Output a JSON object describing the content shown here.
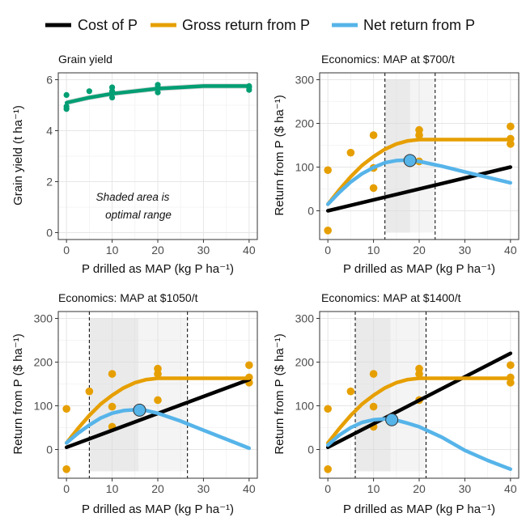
{
  "legend": {
    "items": [
      {
        "label": "Cost of P",
        "color": "#000000"
      },
      {
        "label": "Gross return from P",
        "color": "#E69F00"
      },
      {
        "label": "Net return from P",
        "color": "#56B4E9"
      }
    ]
  },
  "colors": {
    "yield": "#009E73",
    "cost": "#000000",
    "gross": "#E69F00",
    "net": "#56B4E9",
    "shade": "#D9D9D9"
  },
  "chart_data": [
    {
      "type": "scatter",
      "title": "Grain yield",
      "xlabel": "P drilled as MAP (kg P ha⁻¹)",
      "ylabel": "Grain yield (t ha⁻¹)",
      "xlim": [
        0,
        40
      ],
      "ylim": [
        0,
        6
      ],
      "xticks": [
        0,
        10,
        20,
        30,
        40
      ],
      "yticks": [
        0,
        2,
        4,
        6
      ],
      "points": {
        "x": [
          0,
          0,
          0,
          5,
          10,
          10,
          10,
          20,
          20,
          20,
          40,
          40,
          40
        ],
        "y": [
          4.85,
          4.95,
          5.4,
          5.55,
          5.3,
          5.55,
          5.7,
          5.5,
          5.7,
          5.8,
          5.7,
          5.75,
          5.6
        ]
      },
      "fit": {
        "x": [
          0,
          5,
          10,
          15,
          20,
          25,
          30,
          35,
          40
        ],
        "y": [
          5.1,
          5.3,
          5.45,
          5.55,
          5.65,
          5.7,
          5.75,
          5.75,
          5.75
        ]
      },
      "annotation": [
        "Shaded area is",
        "optimal range"
      ]
    },
    {
      "type": "line",
      "title": "Economics: MAP at $700/t",
      "xlabel": "P drilled as MAP (kg P ha⁻¹)",
      "ylabel": "Return from P ($ ha⁻¹)",
      "xlim": [
        0,
        40
      ],
      "ylim": [
        -50,
        300
      ],
      "xticks": [
        0,
        10,
        20,
        30,
        40
      ],
      "yticks": [
        0,
        100,
        200,
        300
      ],
      "optimal_range": [
        12.5,
        23.5
      ],
      "optimum": {
        "x": 18,
        "y": 115
      },
      "points": {
        "x": [
          0,
          0,
          5,
          10,
          10,
          10,
          20,
          20,
          20,
          40,
          40,
          40
        ],
        "y": [
          -45,
          93,
          133,
          173,
          98,
          52,
          185,
          173,
          113,
          193,
          165,
          153
        ]
      },
      "series": [
        {
          "name": "Cost of P",
          "x": [
            0,
            40
          ],
          "y": [
            0,
            100
          ]
        },
        {
          "name": "Gross return from P",
          "x": [
            0,
            2.5,
            5,
            7.5,
            10,
            12.5,
            15,
            17.5,
            20,
            22.5,
            30,
            40
          ],
          "y": [
            15,
            48,
            78,
            104,
            124,
            141,
            153,
            160,
            163,
            163,
            163,
            163
          ]
        },
        {
          "name": "Net return from P",
          "x": [
            0,
            2.5,
            5,
            7.5,
            10,
            12.5,
            15,
            17.5,
            20,
            25,
            30,
            40
          ],
          "y": [
            15,
            42,
            66,
            85,
            99,
            110,
            115,
            116,
            113,
            102,
            89,
            64
          ]
        }
      ]
    },
    {
      "type": "line",
      "title": "Economics: MAP at $1050/t",
      "xlabel": "P drilled as MAP (kg P ha⁻¹)",
      "ylabel": "Return from P ($ ha⁻¹)",
      "xlim": [
        0,
        40
      ],
      "ylim": [
        -50,
        300
      ],
      "xticks": [
        0,
        10,
        20,
        30,
        40
      ],
      "yticks": [
        0,
        100,
        200,
        300
      ],
      "optimal_range": [
        5,
        26.5
      ],
      "optimum": {
        "x": 16,
        "y": 90
      },
      "points": {
        "x": [
          0,
          0,
          5,
          10,
          10,
          10,
          20,
          20,
          20,
          40,
          40,
          40
        ],
        "y": [
          -45,
          93,
          133,
          173,
          98,
          52,
          185,
          173,
          113,
          193,
          165,
          153
        ]
      },
      "series": [
        {
          "name": "Cost of P",
          "x": [
            0,
            40
          ],
          "y": [
            5,
            160
          ]
        },
        {
          "name": "Gross return from P",
          "x": [
            0,
            2.5,
            5,
            7.5,
            10,
            12.5,
            15,
            17.5,
            20,
            22.5,
            30,
            40
          ],
          "y": [
            15,
            48,
            78,
            104,
            124,
            141,
            153,
            160,
            163,
            163,
            163,
            163
          ]
        },
        {
          "name": "Net return from P",
          "x": [
            0,
            2.5,
            5,
            7.5,
            10,
            12.5,
            15,
            17.5,
            20,
            25,
            30,
            40
          ],
          "y": [
            15,
            37,
            56,
            72,
            83,
            89,
            91,
            89,
            83,
            65,
            44,
            3
          ]
        }
      ]
    },
    {
      "type": "line",
      "title": "Economics: MAP at $1400/t",
      "xlabel": "P drilled as MAP (kg P ha⁻¹)",
      "ylabel": "Return from P ($ ha⁻¹)",
      "xlim": [
        0,
        40
      ],
      "ylim": [
        -50,
        300
      ],
      "xticks": [
        0,
        10,
        20,
        30,
        40
      ],
      "yticks": [
        0,
        100,
        200,
        300
      ],
      "optimal_range": [
        6,
        21.5
      ],
      "optimum": {
        "x": 14,
        "y": 68
      },
      "points": {
        "x": [
          0,
          0,
          5,
          10,
          10,
          10,
          20,
          20,
          20,
          40,
          40,
          40
        ],
        "y": [
          -45,
          93,
          133,
          173,
          98,
          52,
          185,
          173,
          113,
          193,
          165,
          153
        ]
      },
      "series": [
        {
          "name": "Cost of P",
          "x": [
            0,
            40
          ],
          "y": [
            5,
            220
          ]
        },
        {
          "name": "Gross return from P",
          "x": [
            0,
            2.5,
            5,
            7.5,
            10,
            12.5,
            15,
            17.5,
            20,
            22.5,
            30,
            40
          ],
          "y": [
            15,
            48,
            78,
            104,
            124,
            141,
            153,
            160,
            163,
            163,
            163,
            163
          ]
        },
        {
          "name": "Net return from P",
          "x": [
            0,
            2.5,
            5,
            7.5,
            10,
            12.5,
            15,
            17.5,
            20,
            25,
            30,
            35,
            40
          ],
          "y": [
            10,
            33,
            50,
            62,
            68,
            70,
            67,
            60,
            52,
            28,
            -2,
            -25,
            -45
          ]
        }
      ]
    }
  ]
}
